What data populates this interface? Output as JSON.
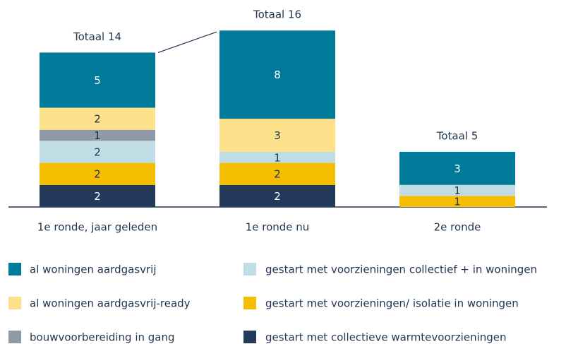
{
  "chart_data": {
    "type": "stacked_bar",
    "categories": [
      "1e ronde, jaar geleden",
      "1e ronde nu",
      "2e ronde"
    ],
    "total_labels": [
      "Totaal 14",
      "Totaal 16",
      "Totaal 5"
    ],
    "ylim": [
      0,
      18
    ],
    "series": [
      {
        "name": "gestart met collectieve warmtevoorzieningen",
        "color": "#243a5a",
        "values": [
          2,
          2,
          0
        ]
      },
      {
        "name": "gestart met voorzieningen/ isolatie in woningen",
        "color": "#f5be00",
        "values": [
          2,
          2,
          1
        ]
      },
      {
        "name": "gestart met voorzieningen collectief + in woningen",
        "color": "#c0dde6",
        "values": [
          2,
          1,
          1
        ]
      },
      {
        "name": "bouwvoorbereiding in gang",
        "color": "#8f9aa6",
        "values": [
          1,
          0,
          0
        ]
      },
      {
        "name": "al woningen aardgasvrij-ready",
        "color": "#fce08a",
        "values": [
          2,
          3,
          0
        ]
      },
      {
        "name": "al woningen aardgasvrij",
        "color": "#007a99",
        "values": [
          5,
          8,
          3
        ]
      }
    ]
  }
}
